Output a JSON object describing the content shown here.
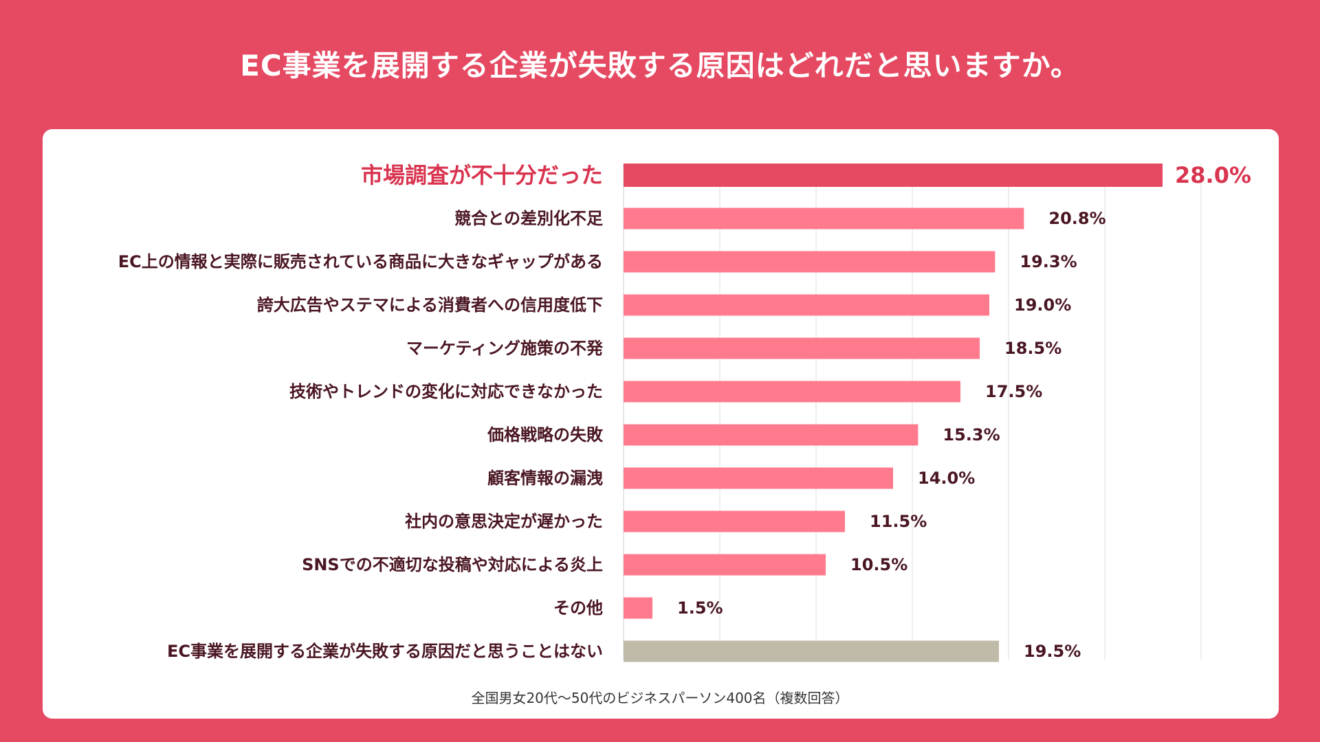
{
  "header": {
    "title": "EC事業を展開する企業が失敗する原因はどれだと思いますか。"
  },
  "footnote": "全国男女20代〜50代のビジネスパーソン400名（複数回答）",
  "colors": {
    "background": "#e54a62",
    "highlight_bar": "#e54a62",
    "highlight_text": "#d9344f",
    "bar": "#ff7a8c",
    "neutral_bar": "#bfbba8",
    "label_text": "#4a1622"
  },
  "chart_data": {
    "type": "bar",
    "orientation": "horizontal",
    "title": "EC事業を展開する企業が失敗する原因はどれだと思いますか。",
    "xlim": [
      0,
      30
    ],
    "unit": "%",
    "grid": true,
    "categories": [
      "市場調査が不十分だった",
      "競合との差別化不足",
      "EC上の情報と実際に販売されている商品に大きなギャップがある",
      "誇大広告やステマによる消費者への信用度低下",
      "マーケティング施策の不発",
      "技術やトレンドの変化に対応できなかった",
      "価格戦略の失敗",
      "顧客情報の漏洩",
      "社内の意思決定が遅かった",
      "SNSでの不適切な投稿や対応による炎上",
      "その他",
      "EC事業を展開する企業が失敗する原因だと思うことはない"
    ],
    "values": [
      28.0,
      20.8,
      19.3,
      19.0,
      18.5,
      17.5,
      15.3,
      14.0,
      11.5,
      10.5,
      1.5,
      19.5
    ],
    "value_labels": [
      "28.0%",
      "20.8%",
      "19.3%",
      "19.0%",
      "18.5%",
      "17.5%",
      "15.3%",
      "14.0%",
      "11.5%",
      "10.5%",
      "1.5%",
      "19.5%"
    ],
    "highlight_index": 0,
    "neutral_index": 11
  }
}
